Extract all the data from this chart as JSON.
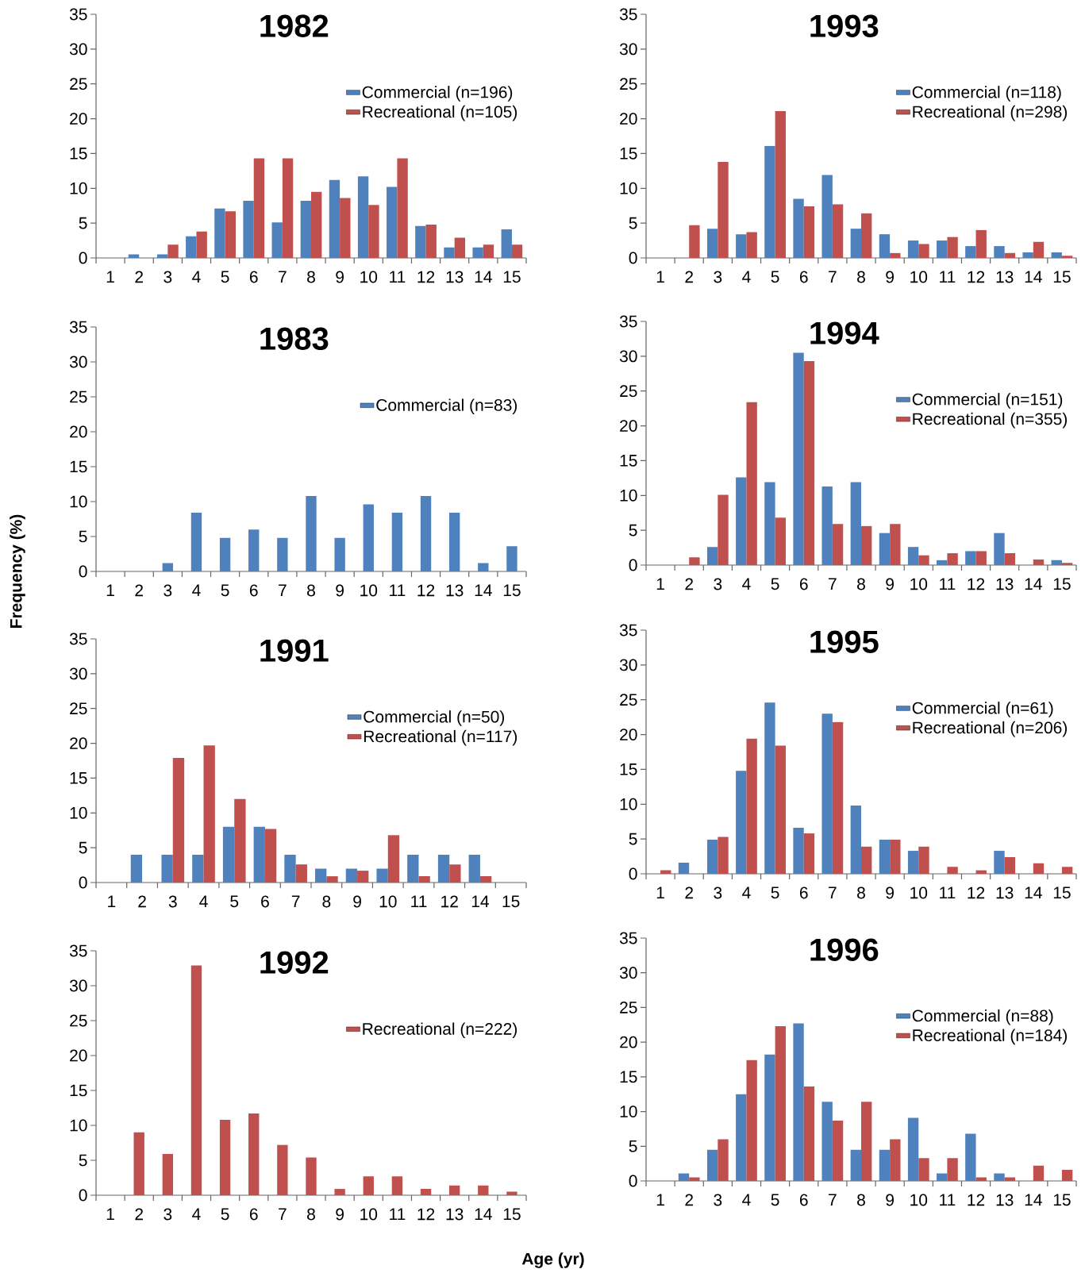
{
  "chart_data": [
    {
      "type": "bar",
      "title": "1982",
      "categories": [
        "1",
        "2",
        "3",
        "4",
        "5",
        "6",
        "7",
        "8",
        "9",
        "10",
        "11",
        "12",
        "13",
        "14",
        "15"
      ],
      "ylim": [
        0,
        35
      ],
      "yticks": [
        0,
        5,
        10,
        15,
        20,
        25,
        30,
        35
      ],
      "legend": "top right",
      "series": [
        {
          "name": "Commercial (n=196)",
          "color": "#4f81bd",
          "values": [
            0,
            0.5,
            0.5,
            3.1,
            7.1,
            8.2,
            5.1,
            8.2,
            11.2,
            11.7,
            10.2,
            4.6,
            1.5,
            1.5,
            4.1
          ]
        },
        {
          "name": "Recreational (n=105)",
          "color": "#c0504d",
          "values": [
            0,
            0,
            1.9,
            3.8,
            6.7,
            14.3,
            14.3,
            9.5,
            8.6,
            7.6,
            14.3,
            4.8,
            2.9,
            1.9,
            1.9
          ]
        }
      ]
    },
    {
      "type": "bar",
      "title": "1993",
      "categories": [
        "1",
        "2",
        "3",
        "4",
        "5",
        "6",
        "7",
        "8",
        "9",
        "10",
        "11",
        "12",
        "13",
        "14",
        "15"
      ],
      "ylim": [
        0,
        35
      ],
      "yticks": [
        0,
        5,
        10,
        15,
        20,
        25,
        30,
        35
      ],
      "legend": "top right",
      "series": [
        {
          "name": "Commercial (n=118)",
          "color": "#4f81bd",
          "values": [
            0,
            0,
            4.2,
            3.4,
            16.1,
            8.5,
            11.9,
            4.2,
            3.4,
            2.5,
            2.5,
            1.7,
            1.7,
            0.8,
            0.8
          ]
        },
        {
          "name": "Recreational (n=298)",
          "color": "#c0504d",
          "values": [
            0,
            4.7,
            13.8,
            3.7,
            21.1,
            7.4,
            7.7,
            6.4,
            0.7,
            2.0,
            3.0,
            4.0,
            0.7,
            2.3,
            0.3
          ]
        }
      ]
    },
    {
      "type": "bar",
      "title": "1983",
      "ylabel": "Frequency (%)",
      "categories": [
        "1",
        "2",
        "3",
        "4",
        "5",
        "6",
        "7",
        "8",
        "9",
        "10",
        "11",
        "12",
        "13",
        "14",
        "15"
      ],
      "ylim": [
        0,
        35
      ],
      "yticks": [
        0,
        5,
        10,
        15,
        20,
        25,
        30,
        35
      ],
      "legend": "top right",
      "series": [
        {
          "name": "Commercial (n=83)",
          "color": "#4f81bd",
          "values": [
            0,
            0,
            1.2,
            8.4,
            4.8,
            6.0,
            4.8,
            10.8,
            4.8,
            9.6,
            8.4,
            10.8,
            8.4,
            1.2,
            3.6
          ]
        }
      ]
    },
    {
      "type": "bar",
      "title": "1994",
      "categories": [
        "1",
        "2",
        "3",
        "4",
        "5",
        "6",
        "7",
        "8",
        "9",
        "10",
        "11",
        "12",
        "13",
        "14",
        "15"
      ],
      "ylim": [
        0,
        35
      ],
      "yticks": [
        0,
        5,
        10,
        15,
        20,
        25,
        30,
        35
      ],
      "legend": "top right",
      "series": [
        {
          "name": "Commercial (n=151)",
          "color": "#4f81bd",
          "values": [
            0,
            0,
            2.6,
            12.6,
            11.9,
            30.5,
            11.3,
            11.9,
            4.6,
            2.6,
            0.7,
            2.0,
            4.6,
            0,
            0.7
          ]
        },
        {
          "name": "Recreational (n=355)",
          "color": "#c0504d",
          "values": [
            0,
            1.1,
            10.1,
            23.4,
            6.8,
            29.3,
            5.9,
            5.6,
            5.9,
            1.4,
            1.7,
            2.0,
            1.7,
            0.8,
            0.3
          ]
        }
      ]
    },
    {
      "type": "bar",
      "title": "1991",
      "categories": [
        "1",
        "2",
        "3",
        "4",
        "5",
        "6",
        "7",
        "8",
        "9",
        "10",
        "11",
        "12",
        "14",
        "15"
      ],
      "ylim": [
        0,
        35
      ],
      "yticks": [
        0,
        5,
        10,
        15,
        20,
        25,
        30,
        35
      ],
      "legend": "top right",
      "series": [
        {
          "name": "Commercial (n=50)",
          "color": "#4f81bd",
          "values": [
            0,
            4,
            4,
            4,
            8,
            8,
            4,
            2,
            2,
            2,
            4,
            4,
            4,
            0
          ]
        },
        {
          "name": "Recreational (n=117)",
          "color": "#c0504d",
          "values": [
            0,
            0,
            17.9,
            19.7,
            12.0,
            7.7,
            2.6,
            0.9,
            1.7,
            6.8,
            0.9,
            2.6,
            0.9,
            0
          ]
        }
      ]
    },
    {
      "type": "bar",
      "title": "1995",
      "categories": [
        "1",
        "2",
        "3",
        "4",
        "5",
        "6",
        "7",
        "8",
        "9",
        "10",
        "11",
        "12",
        "13",
        "14",
        "15"
      ],
      "ylim": [
        0,
        35
      ],
      "yticks": [
        0,
        5,
        10,
        15,
        20,
        25,
        30,
        35
      ],
      "legend": "top right",
      "series": [
        {
          "name": "Commercial (n=61)",
          "color": "#4f81bd",
          "values": [
            0,
            1.6,
            4.9,
            14.8,
            24.6,
            6.6,
            23.0,
            9.8,
            4.9,
            3.3,
            0,
            0,
            3.3,
            0,
            0
          ]
        },
        {
          "name": "Recreational (n=206)",
          "color": "#c0504d",
          "values": [
            0.5,
            0,
            5.3,
            19.4,
            18.4,
            5.8,
            21.8,
            3.9,
            4.9,
            3.9,
            1.0,
            0.5,
            2.4,
            1.5,
            1.0
          ]
        }
      ]
    },
    {
      "type": "bar",
      "title": "1992",
      "xlabel": "Age (yr)",
      "categories": [
        "1",
        "2",
        "3",
        "4",
        "5",
        "6",
        "7",
        "8",
        "9",
        "10",
        "11",
        "12",
        "13",
        "14",
        "15"
      ],
      "ylim": [
        0,
        35
      ],
      "yticks": [
        0,
        5,
        10,
        15,
        20,
        25,
        30,
        35
      ],
      "legend": "top right",
      "series": [
        {
          "name": "Recreational (n=222)",
          "color": "#c0504d",
          "values": [
            0,
            9.0,
            5.9,
            32.9,
            10.8,
            11.7,
            7.2,
            5.4,
            0.9,
            2.7,
            2.7,
            0.9,
            1.4,
            1.4,
            0.5
          ]
        }
      ]
    },
    {
      "type": "bar",
      "title": "1996",
      "categories": [
        "1",
        "2",
        "3",
        "4",
        "5",
        "6",
        "7",
        "8",
        "9",
        "10",
        "11",
        "12",
        "13",
        "14",
        "15"
      ],
      "ylim": [
        0,
        35
      ],
      "yticks": [
        0,
        5,
        10,
        15,
        20,
        25,
        30,
        35
      ],
      "legend": "top right",
      "series": [
        {
          "name": "Commercial (n=88)",
          "color": "#4f81bd",
          "values": [
            0,
            1.1,
            4.5,
            12.5,
            18.2,
            22.7,
            11.4,
            4.5,
            4.5,
            9.1,
            1.1,
            6.8,
            1.1,
            0,
            0
          ]
        },
        {
          "name": "Recreational (n=184)",
          "color": "#c0504d",
          "values": [
            0,
            0.5,
            6.0,
            17.4,
            22.3,
            13.6,
            8.7,
            11.4,
            6.0,
            3.3,
            3.3,
            0.5,
            0.5,
            2.2,
            1.6
          ]
        }
      ]
    }
  ]
}
